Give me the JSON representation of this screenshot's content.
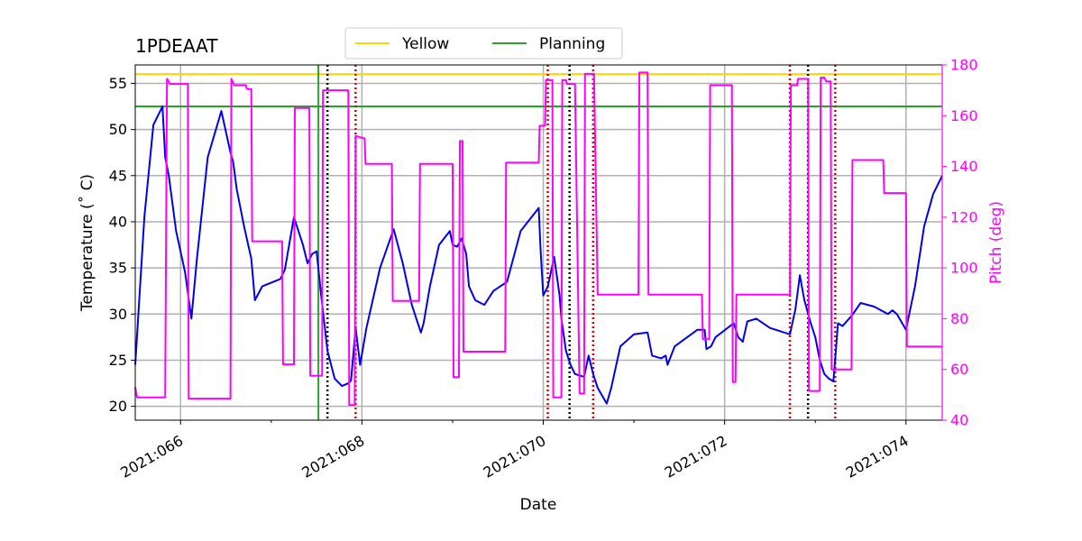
{
  "chart_data": {
    "type": "line",
    "title": "1PDEAAT",
    "xlabel": "Date",
    "ylabel": "Temperature ($^\\circ$C)",
    "ylabel_display": "Temperature (˚ C)",
    "y2label": "Pitch (deg)",
    "xlim": [
      65.5,
      74.4
    ],
    "ylim": [
      18.5,
      57.0
    ],
    "y2lim": [
      40,
      180
    ],
    "x_ticks": [
      66,
      68,
      70,
      72,
      74
    ],
    "x_tick_labels": [
      "2021:066",
      "2021:068",
      "2021:070",
      "2021:072",
      "2021:074"
    ],
    "y_ticks": [
      20,
      25,
      30,
      35,
      40,
      45,
      50,
      55
    ],
    "y_tick_labels": [
      "20",
      "25",
      "30",
      "35",
      "40",
      "45",
      "50",
      "55"
    ],
    "y2_ticks": [
      40,
      60,
      80,
      100,
      120,
      140,
      160,
      180
    ],
    "y2_tick_labels": [
      "40",
      "60",
      "80",
      "100",
      "120",
      "140",
      "160",
      "180"
    ],
    "grid": true,
    "legend_position": "top-center",
    "colors": {
      "temperature": "#0000ee",
      "pitch": "#ff00ff",
      "yellow": "#ffd700",
      "planning": "#2ca02c",
      "red_marker": "#dd0000",
      "black_marker": "#000000",
      "grid": "#b0b0b0",
      "pitch_axis": "#ff00ff"
    },
    "limits": [
      {
        "name": "Yellow",
        "value": 56.0,
        "color": "#ffd700"
      },
      {
        "name": "Planning",
        "value": 52.5,
        "color": "#2ca02c"
      }
    ],
    "vertical_lines": [
      {
        "x": 67.52,
        "color": "#2ca02c",
        "style": "solid"
      },
      {
        "x": 67.62,
        "color": "#000000",
        "style": "dotted"
      },
      {
        "x": 67.93,
        "color": "#dd0000",
        "style": "dotted"
      },
      {
        "x": 70.05,
        "color": "#dd0000",
        "style": "dotted"
      },
      {
        "x": 70.29,
        "color": "#000000",
        "style": "dotted"
      },
      {
        "x": 70.55,
        "color": "#dd0000",
        "style": "dotted"
      },
      {
        "x": 72.72,
        "color": "#dd0000",
        "style": "dotted"
      },
      {
        "x": 72.92,
        "color": "#000000",
        "style": "dotted"
      },
      {
        "x": 73.22,
        "color": "#dd0000",
        "style": "dotted"
      }
    ],
    "series": [
      {
        "axis": "left",
        "color": "#0000ee",
        "x": [
          65.5,
          65.6,
          65.7,
          65.8,
          65.83,
          65.87,
          65.95,
          66.05,
          66.12,
          66.18,
          66.3,
          66.45,
          66.55,
          66.58,
          66.62,
          66.7,
          66.78,
          66.82,
          66.9,
          67.1,
          67.15,
          67.25,
          67.35,
          67.4,
          67.45,
          67.5,
          67.55,
          67.62,
          67.7,
          67.78,
          67.85,
          67.88,
          67.93,
          67.98,
          68.05,
          68.2,
          68.35,
          68.45,
          68.55,
          68.65,
          68.68,
          68.75,
          68.85,
          68.97,
          69.0,
          69.05,
          69.1,
          69.15,
          69.18,
          69.25,
          69.35,
          69.45,
          69.6,
          69.75,
          69.95,
          69.97,
          70.0,
          70.05,
          70.12,
          70.18,
          70.2,
          70.25,
          70.3,
          70.35,
          70.45,
          70.5,
          70.55,
          70.6,
          70.7,
          70.75,
          70.85,
          71.0,
          71.15,
          71.2,
          71.3,
          71.35,
          71.37,
          71.45,
          71.7,
          71.78,
          71.8,
          71.85,
          71.9,
          72.1,
          72.15,
          72.2,
          72.25,
          72.35,
          72.5,
          72.72,
          72.78,
          72.83,
          72.88,
          72.95,
          73.0,
          73.05,
          73.1,
          73.15,
          73.2,
          73.25,
          73.3,
          73.4,
          73.5,
          73.65,
          73.8,
          73.85,
          73.9,
          74.0,
          74.1,
          74.2,
          74.3,
          74.4
        ],
        "values": [
          24.5,
          40.5,
          50.5,
          52.5,
          47.0,
          45.0,
          39.0,
          34.5,
          29.5,
          36.0,
          47.0,
          52.0,
          47.5,
          46.5,
          43.5,
          39.5,
          36.0,
          31.5,
          33.0,
          33.8,
          34.8,
          40.5,
          37.5,
          35.5,
          36.5,
          36.8,
          32.0,
          26.0,
          23.0,
          22.2,
          22.5,
          22.8,
          28.5,
          24.5,
          28.5,
          35.0,
          39.2,
          35.5,
          31.0,
          28.0,
          29.0,
          33.0,
          37.5,
          39.0,
          37.5,
          37.3,
          38.2,
          36.5,
          33.0,
          31.5,
          31.0,
          32.5,
          33.5,
          39.0,
          41.5,
          37.0,
          32.0,
          33.0,
          36.2,
          32.0,
          29.5,
          26.0,
          24.5,
          23.5,
          23.2,
          25.5,
          23.5,
          22.0,
          20.3,
          22.0,
          26.5,
          27.8,
          28.0,
          25.5,
          25.2,
          25.5,
          24.5,
          26.5,
          28.3,
          28.3,
          26.2,
          26.5,
          27.5,
          29.0,
          27.5,
          27.0,
          29.2,
          29.5,
          28.5,
          27.8,
          30.5,
          34.2,
          31.5,
          29.0,
          27.5,
          25.0,
          23.5,
          23.0,
          22.7,
          29.0,
          28.7,
          29.8,
          31.2,
          30.8,
          30.0,
          30.4,
          30.0,
          28.3,
          33.0,
          39.5,
          43.0,
          45.0
        ]
      },
      {
        "axis": "right",
        "color": "#ff00ff",
        "x": [
          65.5,
          65.52,
          65.55,
          65.83,
          65.85,
          65.87,
          65.88,
          66.08,
          66.09,
          66.25,
          66.4,
          66.55,
          66.56,
          66.58,
          66.59,
          66.72,
          66.73,
          66.78,
          66.79,
          67.12,
          67.13,
          67.25,
          67.26,
          67.42,
          67.43,
          67.56,
          67.57,
          67.75,
          67.76,
          67.85,
          67.86,
          67.88,
          67.92,
          67.93,
          68.03,
          68.04,
          68.33,
          68.34,
          68.63,
          68.64,
          69.0,
          69.01,
          69.07,
          69.08,
          69.11,
          69.12,
          69.38,
          69.39,
          69.58,
          69.59,
          69.95,
          69.96,
          70.02,
          70.03,
          70.1,
          70.11,
          70.15,
          70.2,
          70.21,
          70.25,
          70.26,
          70.35,
          70.4,
          70.45,
          70.46,
          70.55,
          70.56,
          70.6,
          70.61,
          70.7,
          70.71,
          70.72,
          70.73,
          71.05,
          71.06,
          71.15,
          71.16,
          71.35,
          71.36,
          71.75,
          71.76,
          71.8,
          71.82,
          71.83,
          71.84,
          72.08,
          72.09,
          72.12,
          72.13,
          72.15,
          72.16,
          72.22,
          72.23,
          72.72,
          72.73,
          72.8,
          72.81,
          72.92,
          72.93,
          73.05,
          73.06,
          73.1,
          73.12,
          73.17,
          73.18,
          73.2,
          73.22,
          73.23,
          73.4,
          73.41,
          73.75,
          73.76,
          73.84,
          73.85,
          74.0,
          74.01,
          74.4
        ],
        "values": [
          53.0,
          49.0,
          49.0,
          49.0,
          174.5,
          173.5,
          172.5,
          172.5,
          48.5,
          48.5,
          48.5,
          48.5,
          174.5,
          173.0,
          172.0,
          172.0,
          170.5,
          170.5,
          110.5,
          110.5,
          62.0,
          62.0,
          163.0,
          163.0,
          57.5,
          57.5,
          170.0,
          170.0,
          170.0,
          170.0,
          46.0,
          46.0,
          46.0,
          152.0,
          151.0,
          141.0,
          141.0,
          87.0,
          87.0,
          141.0,
          141.0,
          57.0,
          57.0,
          150.0,
          150.0,
          67.0,
          67.0,
          67.0,
          67.0,
          141.5,
          141.5,
          156.0,
          156.0,
          174.0,
          174.0,
          49.0,
          49.0,
          49.0,
          174.0,
          174.0,
          172.5,
          172.5,
          50.5,
          50.5,
          176.5,
          176.5,
          176.5,
          89.5,
          89.5,
          89.5,
          89.5,
          89.5,
          89.5,
          89.5,
          177.0,
          177.0,
          89.5,
          89.5,
          89.5,
          89.5,
          72.0,
          72.0,
          72.0,
          72.0,
          172.0,
          172.0,
          55.0,
          55.0,
          89.5,
          89.5,
          89.5,
          89.5,
          89.5,
          89.5,
          172.0,
          172.0,
          174.5,
          174.5,
          51.5,
          51.5,
          175.0,
          175.0,
          173.5,
          173.5,
          60.0,
          60.0,
          60.0,
          60.0,
          60.0,
          142.5,
          142.5,
          129.5,
          129.5,
          129.5,
          129.5,
          69.0,
          69.0
        ]
      }
    ]
  }
}
